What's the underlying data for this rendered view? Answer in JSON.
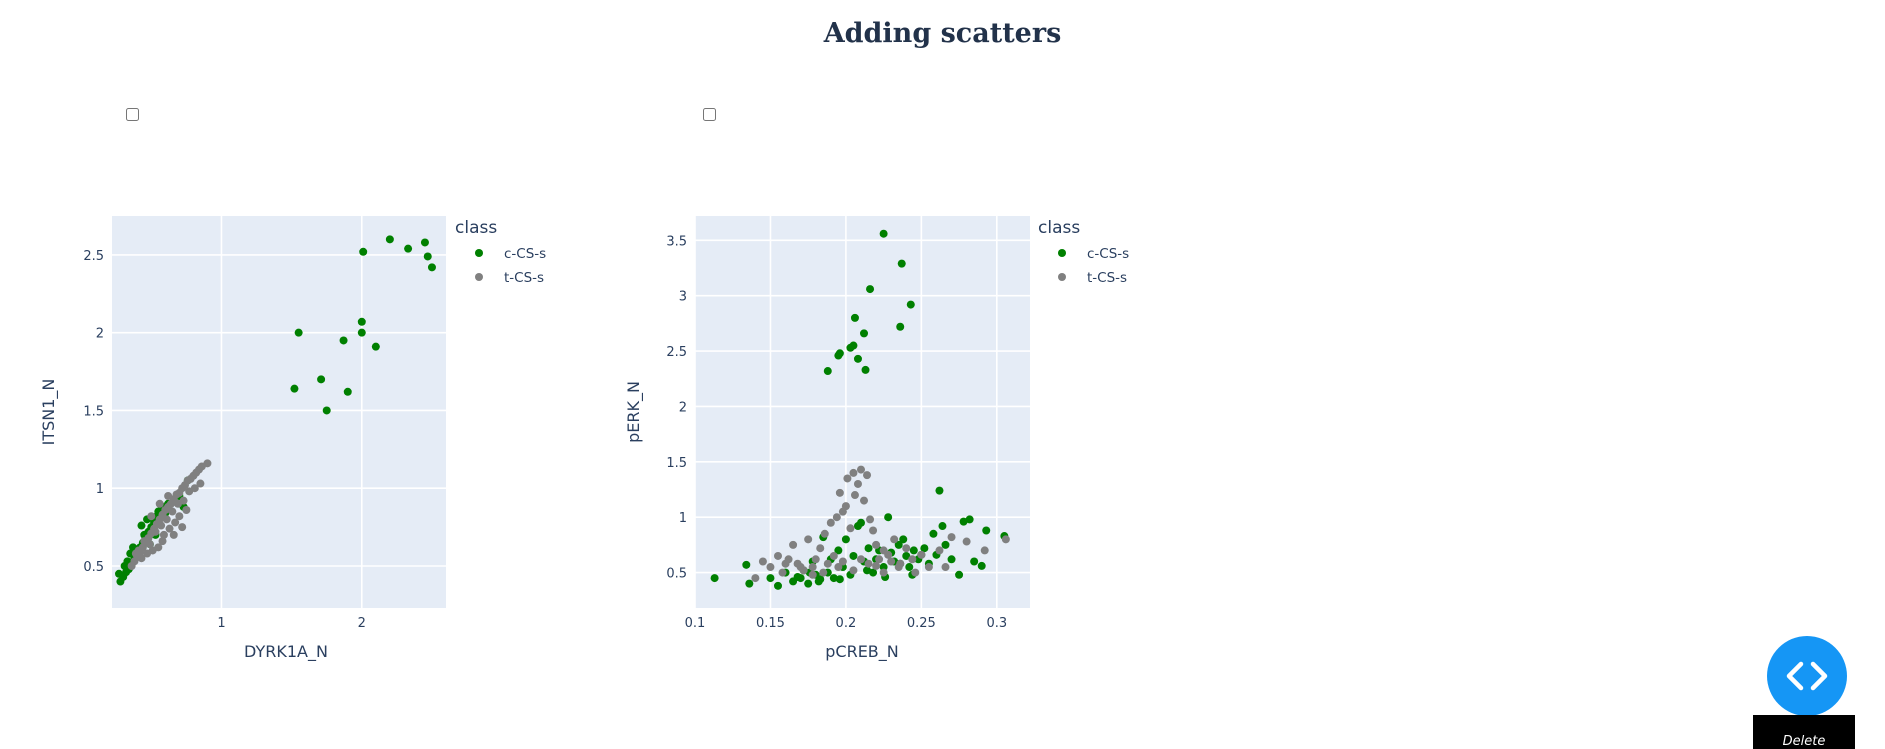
{
  "page": {
    "title": "Adding scatters",
    "toggles": [
      false,
      false
    ]
  },
  "controls": {
    "code_icon": "code-brackets-icon",
    "fab_color": "#1596f5",
    "delete_label": "Delete"
  },
  "colors": {
    "c-CS-s": "#008000",
    "t-CS-s": "#808080",
    "plot_bg": "#e5ecf6",
    "title": "#22324a"
  },
  "chart_data": [
    {
      "type": "scatter",
      "xlabel": "DYRK1A_N",
      "ylabel": "ITSN1_N",
      "legend_title": "class",
      "legend_position": "right",
      "grid": true,
      "xlim": [
        0.22,
        2.6
      ],
      "ylim": [
        0.23,
        2.75
      ],
      "xticks": [
        1,
        2
      ],
      "yticks": [
        0.5,
        1,
        1.5,
        2,
        2.5
      ],
      "xtick_labels": [
        "1",
        "2"
      ],
      "ytick_labels": [
        "0.5",
        "1",
        "1.5",
        "2",
        "2.5"
      ],
      "series": [
        {
          "name": "c-CS-s",
          "color": "#008000",
          "points": [
            [
              0.28,
              0.4
            ],
            [
              0.3,
              0.43
            ],
            [
              0.32,
              0.46
            ],
            [
              0.27,
              0.45
            ],
            [
              0.34,
              0.48
            ],
            [
              0.36,
              0.52
            ],
            [
              0.38,
              0.55
            ],
            [
              0.33,
              0.53
            ],
            [
              0.4,
              0.58
            ],
            [
              0.42,
              0.62
            ],
            [
              0.44,
              0.65
            ],
            [
              0.39,
              0.6
            ],
            [
              0.46,
              0.68
            ],
            [
              0.48,
              0.72
            ],
            [
              0.5,
              0.75
            ],
            [
              0.45,
              0.7
            ],
            [
              0.52,
              0.78
            ],
            [
              0.54,
              0.82
            ],
            [
              0.43,
              0.76
            ],
            [
              0.47,
              0.8
            ],
            [
              0.55,
              0.85
            ],
            [
              0.58,
              0.88
            ],
            [
              0.62,
              0.9
            ],
            [
              0.6,
              0.84
            ],
            [
              0.66,
              0.92
            ],
            [
              0.7,
              0.95
            ],
            [
              0.76,
              1.05
            ],
            [
              0.73,
              0.88
            ],
            [
              0.35,
              0.58
            ],
            [
              0.41,
              0.56
            ],
            [
              0.49,
              0.64
            ],
            [
              0.53,
              0.7
            ],
            [
              0.31,
              0.5
            ],
            [
              0.37,
              0.62
            ],
            [
              1.55,
              2.0
            ],
            [
              1.52,
              1.64
            ],
            [
              1.71,
              1.7
            ],
            [
              1.75,
              1.5
            ],
            [
              1.87,
              1.95
            ],
            [
              1.9,
              1.62
            ],
            [
              2.0,
              2.0
            ],
            [
              2.0,
              2.07
            ],
            [
              2.1,
              1.91
            ],
            [
              2.01,
              2.52
            ],
            [
              2.2,
              2.6
            ],
            [
              2.33,
              2.54
            ],
            [
              2.45,
              2.58
            ],
            [
              2.47,
              2.49
            ],
            [
              2.5,
              2.42
            ]
          ]
        },
        {
          "name": "t-CS-s",
          "color": "#808080",
          "points": [
            [
              0.36,
              0.5
            ],
            [
              0.38,
              0.53
            ],
            [
              0.4,
              0.56
            ],
            [
              0.42,
              0.59
            ],
            [
              0.44,
              0.62
            ],
            [
              0.46,
              0.65
            ],
            [
              0.48,
              0.68
            ],
            [
              0.5,
              0.71
            ],
            [
              0.52,
              0.74
            ],
            [
              0.54,
              0.77
            ],
            [
              0.56,
              0.8
            ],
            [
              0.58,
              0.83
            ],
            [
              0.6,
              0.86
            ],
            [
              0.62,
              0.88
            ],
            [
              0.64,
              0.9
            ],
            [
              0.66,
              0.93
            ],
            [
              0.68,
              0.96
            ],
            [
              0.7,
              0.97
            ],
            [
              0.72,
              1.0
            ],
            [
              0.74,
              1.02
            ],
            [
              0.76,
              1.05
            ],
            [
              0.78,
              1.06
            ],
            [
              0.8,
              1.08
            ],
            [
              0.82,
              1.1
            ],
            [
              0.84,
              1.12
            ],
            [
              0.86,
              1.14
            ],
            [
              0.9,
              1.16
            ],
            [
              0.41,
              0.6
            ],
            [
              0.45,
              0.66
            ],
            [
              0.49,
              0.64
            ],
            [
              0.53,
              0.72
            ],
            [
              0.57,
              0.76
            ],
            [
              0.61,
              0.8
            ],
            [
              0.65,
              0.85
            ],
            [
              0.69,
              0.9
            ],
            [
              0.73,
              0.92
            ],
            [
              0.77,
              0.98
            ],
            [
              0.81,
              1.0
            ],
            [
              0.85,
              1.03
            ],
            [
              0.55,
              0.62
            ],
            [
              0.59,
              0.7
            ],
            [
              0.63,
              0.74
            ],
            [
              0.67,
              0.78
            ],
            [
              0.43,
              0.55
            ],
            [
              0.47,
              0.58
            ],
            [
              0.51,
              0.6
            ],
            [
              0.39,
              0.58
            ],
            [
              0.5,
              0.82
            ],
            [
              0.56,
              0.9
            ],
            [
              0.62,
              0.95
            ],
            [
              0.7,
              0.82
            ],
            [
              0.75,
              0.86
            ],
            [
              0.58,
              0.66
            ],
            [
              0.66,
              0.7
            ],
            [
              0.72,
              0.75
            ]
          ]
        }
      ]
    },
    {
      "type": "scatter",
      "xlabel": "pCREB_N",
      "ylabel": "pERK_N",
      "legend_title": "class",
      "legend_position": "right",
      "grid": true,
      "xlim": [
        0.1,
        0.322
      ],
      "ylim": [
        0.18,
        3.72
      ],
      "xticks": [
        0.1,
        0.15,
        0.2,
        0.25,
        0.3
      ],
      "yticks": [
        0.5,
        1,
        1.5,
        2,
        2.5,
        3,
        3.5
      ],
      "xtick_labels": [
        "0.1",
        "0.15",
        "0.2",
        "0.25",
        "0.3"
      ],
      "ytick_labels": [
        "0.5",
        "1",
        "1.5",
        "2",
        "2.5",
        "3",
        "3.5"
      ],
      "series": [
        {
          "name": "c-CS-s",
          "color": "#008000",
          "points": [
            [
              0.113,
              0.45
            ],
            [
              0.134,
              0.57
            ],
            [
              0.136,
              0.4
            ],
            [
              0.15,
              0.45
            ],
            [
              0.155,
              0.38
            ],
            [
              0.16,
              0.5
            ],
            [
              0.165,
              0.42
            ],
            [
              0.168,
              0.46
            ],
            [
              0.172,
              0.52
            ],
            [
              0.175,
              0.4
            ],
            [
              0.178,
              0.6
            ],
            [
              0.18,
              0.48
            ],
            [
              0.183,
              0.44
            ],
            [
              0.185,
              0.82
            ],
            [
              0.188,
              0.5
            ],
            [
              0.19,
              0.62
            ],
            [
              0.192,
              0.45
            ],
            [
              0.195,
              0.7
            ],
            [
              0.198,
              0.55
            ],
            [
              0.2,
              0.8
            ],
            [
              0.203,
              0.48
            ],
            [
              0.205,
              0.65
            ],
            [
              0.208,
              0.92
            ],
            [
              0.21,
              0.95
            ],
            [
              0.212,
              0.6
            ],
            [
              0.215,
              0.72
            ],
            [
              0.218,
              0.5
            ],
            [
              0.22,
              0.62
            ],
            [
              0.222,
              0.7
            ],
            [
              0.225,
              0.55
            ],
            [
              0.228,
              1.0
            ],
            [
              0.23,
              0.68
            ],
            [
              0.232,
              0.6
            ],
            [
              0.235,
              0.75
            ],
            [
              0.238,
              0.8
            ],
            [
              0.24,
              0.65
            ],
            [
              0.242,
              0.55
            ],
            [
              0.245,
              0.7
            ],
            [
              0.248,
              0.62
            ],
            [
              0.25,
              0.66
            ],
            [
              0.252,
              0.72
            ],
            [
              0.255,
              0.58
            ],
            [
              0.258,
              0.85
            ],
            [
              0.26,
              0.66
            ],
            [
              0.262,
              1.24
            ],
            [
              0.264,
              0.92
            ],
            [
              0.266,
              0.75
            ],
            [
              0.27,
              0.62
            ],
            [
              0.275,
              0.48
            ],
            [
              0.278,
              0.96
            ],
            [
              0.282,
              0.98
            ],
            [
              0.285,
              0.6
            ],
            [
              0.29,
              0.56
            ],
            [
              0.293,
              0.88
            ],
            [
              0.305,
              0.83
            ],
            [
              0.17,
              0.45
            ],
            [
              0.176,
              0.5
            ],
            [
              0.182,
              0.42
            ],
            [
              0.196,
              0.44
            ],
            [
              0.214,
              0.52
            ],
            [
              0.226,
              0.46
            ],
            [
              0.236,
              0.58
            ],
            [
              0.244,
              0.48
            ],
            [
              0.188,
              2.32
            ],
            [
              0.195,
              2.46
            ],
            [
              0.196,
              2.48
            ],
            [
              0.203,
              2.53
            ],
            [
              0.205,
              2.55
            ],
            [
              0.206,
              2.8
            ],
            [
              0.208,
              2.43
            ],
            [
              0.212,
              2.66
            ],
            [
              0.213,
              2.33
            ],
            [
              0.216,
              3.06
            ],
            [
              0.225,
              3.56
            ],
            [
              0.236,
              2.72
            ],
            [
              0.237,
              3.29
            ],
            [
              0.243,
              2.92
            ]
          ]
        },
        {
          "name": "t-CS-s",
          "color": "#808080",
          "points": [
            [
              0.14,
              0.45
            ],
            [
              0.145,
              0.6
            ],
            [
              0.15,
              0.55
            ],
            [
              0.155,
              0.65
            ],
            [
              0.158,
              0.5
            ],
            [
              0.162,
              0.62
            ],
            [
              0.165,
              0.75
            ],
            [
              0.168,
              0.58
            ],
            [
              0.172,
              0.52
            ],
            [
              0.175,
              0.8
            ],
            [
              0.178,
              0.55
            ],
            [
              0.18,
              0.62
            ],
            [
              0.183,
              0.72
            ],
            [
              0.186,
              0.85
            ],
            [
              0.188,
              0.58
            ],
            [
              0.19,
              0.95
            ],
            [
              0.192,
              0.65
            ],
            [
              0.194,
              1.0
            ],
            [
              0.196,
              1.22
            ],
            [
              0.198,
              1.05
            ],
            [
              0.2,
              1.1
            ],
            [
              0.201,
              1.35
            ],
            [
              0.203,
              0.9
            ],
            [
              0.205,
              1.4
            ],
            [
              0.206,
              1.2
            ],
            [
              0.208,
              1.3
            ],
            [
              0.21,
              1.43
            ],
            [
              0.212,
              1.15
            ],
            [
              0.214,
              1.38
            ],
            [
              0.216,
              0.98
            ],
            [
              0.218,
              0.88
            ],
            [
              0.22,
              0.75
            ],
            [
              0.222,
              0.62
            ],
            [
              0.225,
              0.7
            ],
            [
              0.228,
              0.66
            ],
            [
              0.232,
              0.8
            ],
            [
              0.236,
              0.58
            ],
            [
              0.24,
              0.72
            ],
            [
              0.244,
              0.62
            ],
            [
              0.25,
              0.66
            ],
            [
              0.255,
              0.55
            ],
            [
              0.262,
              0.7
            ],
            [
              0.266,
              0.55
            ],
            [
              0.27,
              0.82
            ],
            [
              0.28,
              0.78
            ],
            [
              0.292,
              0.7
            ],
            [
              0.306,
              0.8
            ],
            [
              0.185,
              0.5
            ],
            [
              0.195,
              0.55
            ],
            [
              0.205,
              0.52
            ],
            [
              0.215,
              0.58
            ],
            [
              0.225,
              0.5
            ],
            [
              0.235,
              0.55
            ],
            [
              0.246,
              0.5
            ],
            [
              0.178,
              0.48
            ],
            [
              0.17,
              0.55
            ],
            [
              0.16,
              0.58
            ],
            [
              0.198,
              0.6
            ],
            [
              0.21,
              0.62
            ],
            [
              0.22,
              0.56
            ],
            [
              0.23,
              0.6
            ]
          ]
        }
      ]
    }
  ]
}
